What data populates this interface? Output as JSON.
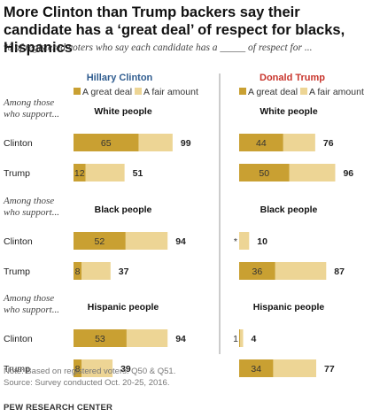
{
  "title": "More Clinton than Trump backers say their candidate has a ‘great deal’ of respect for blacks, Hispanics",
  "subtitle": "% of registered voters who say each candidate has a _____ of respect for ...",
  "colors": {
    "great_deal": "#C9A032",
    "fair_amount": "#EDD595",
    "clinton_title": "#2F5C8F",
    "trump_title": "#C8342B",
    "divider": "#999999"
  },
  "among_text": [
    "Among those",
    "who support..."
  ],
  "note_lines": [
    "Note: Based on registered voters. Q50 & Q51.",
    "Source: Survey conducted Oct. 20-25, 2016."
  ],
  "source_label": "PEW RESEARCH CENTER",
  "chart_data": {
    "type": "bar",
    "stacked": true,
    "orientation": "horizontal",
    "legend": [
      "A great deal",
      "A fair amount"
    ],
    "panels": [
      {
        "title": "Hillary Clinton",
        "groups": [
          {
            "label": "White people",
            "rows": [
              {
                "label": "Clinton",
                "great_deal": 65,
                "total": 99
              },
              {
                "label": "Trump",
                "great_deal": 12,
                "total": 51
              }
            ]
          },
          {
            "label": "Black people",
            "rows": [
              {
                "label": "Clinton",
                "great_deal": 52,
                "total": 94
              },
              {
                "label": "Trump",
                "great_deal": 8,
                "total": 37
              }
            ]
          },
          {
            "label": "Hispanic people",
            "rows": [
              {
                "label": "Clinton",
                "great_deal": 53,
                "total": 94
              },
              {
                "label": "Trump",
                "great_deal": 8,
                "total": 39
              }
            ]
          }
        ]
      },
      {
        "title": "Donald Trump",
        "groups": [
          {
            "label": "White people",
            "rows": [
              {
                "label": "Clinton",
                "great_deal": 44,
                "total": 76
              },
              {
                "label": "Trump",
                "great_deal": 50,
                "total": 96
              }
            ]
          },
          {
            "label": "Black people",
            "rows": [
              {
                "label": "Clinton",
                "great_deal": 0,
                "great_deal_label": "*",
                "total": 10
              },
              {
                "label": "Trump",
                "great_deal": 36,
                "total": 87
              }
            ]
          },
          {
            "label": "Hispanic people",
            "rows": [
              {
                "label": "Clinton",
                "great_deal": 1,
                "total": 4
              },
              {
                "label": "Trump",
                "great_deal": 34,
                "total": 77
              }
            ]
          }
        ]
      }
    ]
  }
}
